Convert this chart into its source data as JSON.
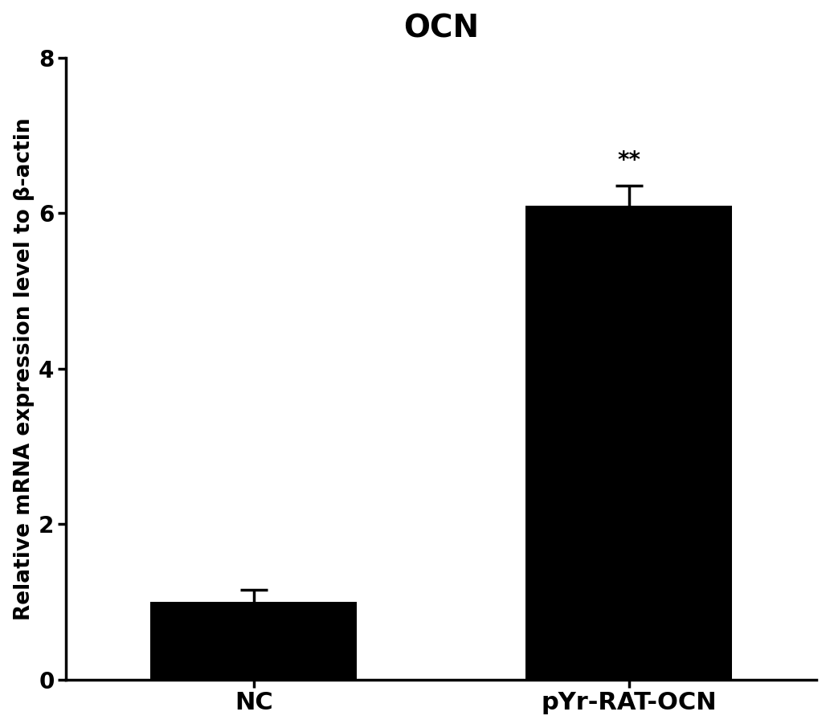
{
  "title": "OCN",
  "ylabel": "Relative mRNA expression level to β-actin",
  "categories": [
    "NC",
    "pYr-RAT-OCN"
  ],
  "values": [
    1.0,
    6.1
  ],
  "errors": [
    0.15,
    0.25
  ],
  "bar_color": "#000000",
  "bar_width": 0.55,
  "xlim": [
    -0.5,
    1.5
  ],
  "ylim": [
    0,
    8
  ],
  "yticks": [
    0,
    2,
    4,
    6,
    8
  ],
  "significance": [
    "",
    "**"
  ],
  "title_fontsize": 28,
  "label_fontsize": 19,
  "tick_fontsize": 20,
  "sig_fontsize": 20,
  "xtick_fontsize": 22,
  "figsize": [
    10.33,
    9.06
  ],
  "dpi": 100
}
